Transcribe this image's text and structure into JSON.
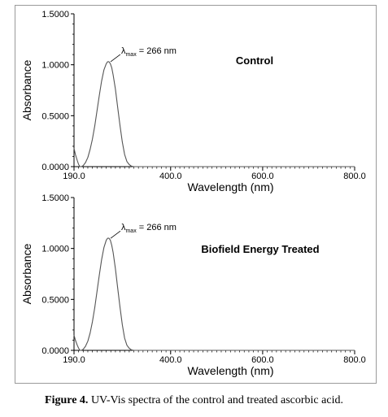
{
  "caption": {
    "label": "Figure 4.",
    "text": " UV-Vis spectra of the control and treated ascorbic acid."
  },
  "chart_data": [
    {
      "type": "line",
      "title": "Control",
      "xlabel": "Wavelength (nm)",
      "ylabel": "Absorbance",
      "xlim": [
        190,
        800
      ],
      "ylim": [
        0,
        1.5
      ],
      "xticks": [
        "190.0",
        "400.0",
        "600.0",
        "800.0"
      ],
      "yticks": [
        "0.0000",
        "0.5000",
        "1.0000",
        "1.5000"
      ],
      "annotation": {
        "text_prefix": "λ",
        "subscript": "max",
        "text_suffix": " = 266 nm",
        "x": 266,
        "y": 1.03
      },
      "series": [
        {
          "x": [
            190,
            193,
            197,
            200,
            203,
            206,
            210,
            215,
            220,
            225,
            230,
            235,
            240,
            245,
            250,
            255,
            260,
            263,
            266,
            269,
            272,
            275,
            280,
            285,
            290,
            295,
            300,
            305,
            310,
            315,
            320,
            330,
            400,
            500,
            600,
            700,
            800
          ],
          "y": [
            0.18,
            0.12,
            0.06,
            0.02,
            0.0,
            0.0,
            0.01,
            0.04,
            0.09,
            0.17,
            0.27,
            0.4,
            0.55,
            0.7,
            0.84,
            0.95,
            1.01,
            1.03,
            1.03,
            1.01,
            0.97,
            0.9,
            0.76,
            0.58,
            0.4,
            0.24,
            0.12,
            0.05,
            0.02,
            0.005,
            0.0,
            0.0,
            0.0,
            0.0,
            0.0,
            0.0,
            0.0
          ]
        }
      ]
    },
    {
      "type": "line",
      "title": "Biofield Energy Treated",
      "xlabel": "Wavelength (nm)",
      "ylabel": "Absorbance",
      "xlim": [
        190,
        800
      ],
      "ylim": [
        0,
        1.5
      ],
      "xticks": [
        "190.0",
        "400.0",
        "600.0",
        "800.0"
      ],
      "yticks": [
        "0.0000",
        "0.5000",
        "1.0000",
        "1.5000"
      ],
      "annotation": {
        "text_prefix": "λ",
        "subscript": "max",
        "text_suffix": " = 266 nm",
        "x": 266,
        "y": 1.1
      },
      "series": [
        {
          "x": [
            190,
            193,
            197,
            200,
            203,
            206,
            210,
            215,
            220,
            225,
            230,
            235,
            240,
            245,
            250,
            255,
            260,
            263,
            266,
            269,
            272,
            275,
            280,
            285,
            290,
            295,
            300,
            305,
            310,
            315,
            320,
            330,
            400,
            500,
            600,
            700,
            800
          ],
          "y": [
            0.15,
            0.1,
            0.05,
            0.02,
            0.0,
            0.0,
            0.01,
            0.04,
            0.09,
            0.17,
            0.28,
            0.42,
            0.58,
            0.74,
            0.89,
            1.01,
            1.08,
            1.1,
            1.1,
            1.08,
            1.03,
            0.96,
            0.8,
            0.61,
            0.42,
            0.25,
            0.12,
            0.05,
            0.02,
            0.005,
            0.0,
            0.0,
            0.0,
            0.0,
            0.0,
            0.0,
            0.0
          ]
        }
      ]
    }
  ]
}
